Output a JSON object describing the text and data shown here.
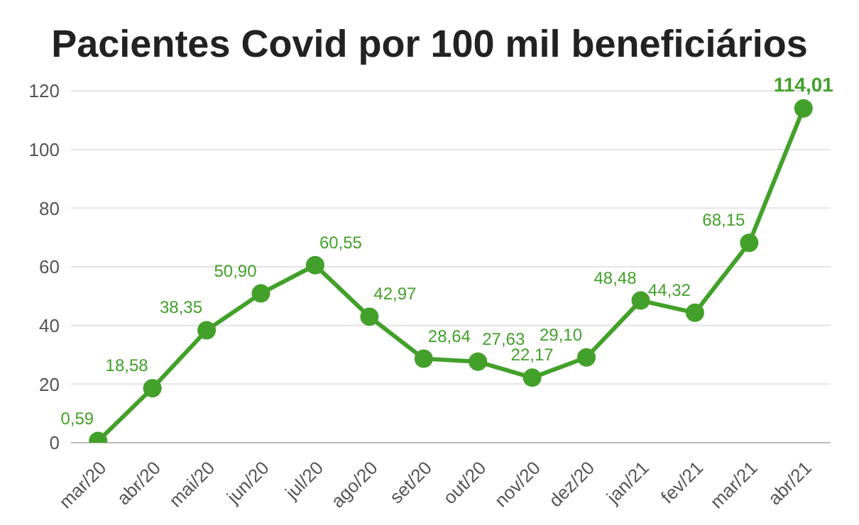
{
  "chart_data": {
    "type": "line",
    "title": "Pacientes Covid por 100 mil beneficiários",
    "categories": [
      "mar/20",
      "abr/20",
      "mai/20",
      "jun/20",
      "jul/20",
      "ago/20",
      "set/20",
      "out/20",
      "nov/20",
      "dez/20",
      "jan/21",
      "fev/21",
      "mar/21",
      "abr/21"
    ],
    "series": [
      {
        "color": "#43a02a",
        "values": [
          0.59,
          18.58,
          38.35,
          50.9,
          60.55,
          42.97,
          28.64,
          27.63,
          22.17,
          29.1,
          48.48,
          44.32,
          68.15,
          114.01
        ]
      }
    ],
    "value_labels": [
      "0,59",
      "18,58",
      "38,35",
      "50,90",
      "60,55",
      "42,97",
      "28,64",
      "27,63",
      "22,17",
      "29,10",
      "48,48",
      "44,32",
      "68,15",
      "114,01"
    ],
    "ylim": [
      0,
      120
    ],
    "yticks": [
      0,
      20,
      40,
      60,
      80,
      100,
      120
    ],
    "grid": "y",
    "marker": "circle",
    "line_style": "solid"
  }
}
